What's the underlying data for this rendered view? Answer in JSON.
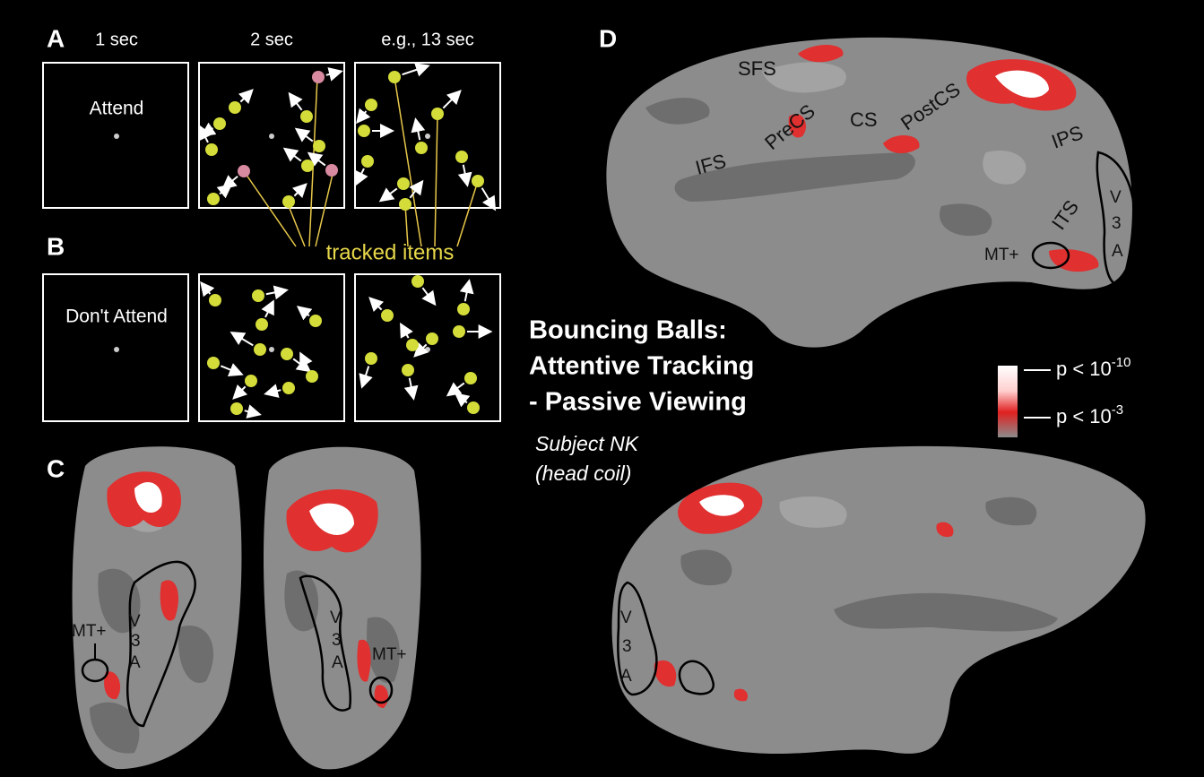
{
  "panels": {
    "a": {
      "label": "A",
      "timings": [
        "1 sec",
        "2 sec",
        "e.g., 13 sec"
      ],
      "cue": "Attend",
      "tracked_label": "tracked items"
    },
    "b": {
      "label": "B",
      "cue": "Don't Attend"
    },
    "c": {
      "label": "C",
      "left_labels": [
        "MT+",
        "V",
        "3",
        "A"
      ],
      "right_labels": [
        "V",
        "3",
        "A",
        "MT+"
      ]
    },
    "d": {
      "label": "D",
      "sulci": [
        "SFS",
        "PreCS",
        "CS",
        "PostCS",
        "IFS",
        "IPS",
        "ITS"
      ],
      "areas": [
        "V",
        "3",
        "A",
        "MT+"
      ],
      "lower_areas": [
        "V",
        "3",
        "A"
      ]
    }
  },
  "title": {
    "lines": [
      "Bouncing Balls:",
      "Attentive Tracking",
      "- Passive Viewing"
    ],
    "subject": "Subject NK",
    "coil": "(head coil)"
  },
  "legend": [
    {
      "prefix": "p < 10",
      "exponent": "-10"
    },
    {
      "prefix": "p < 10",
      "exponent": "-3"
    }
  ]
}
